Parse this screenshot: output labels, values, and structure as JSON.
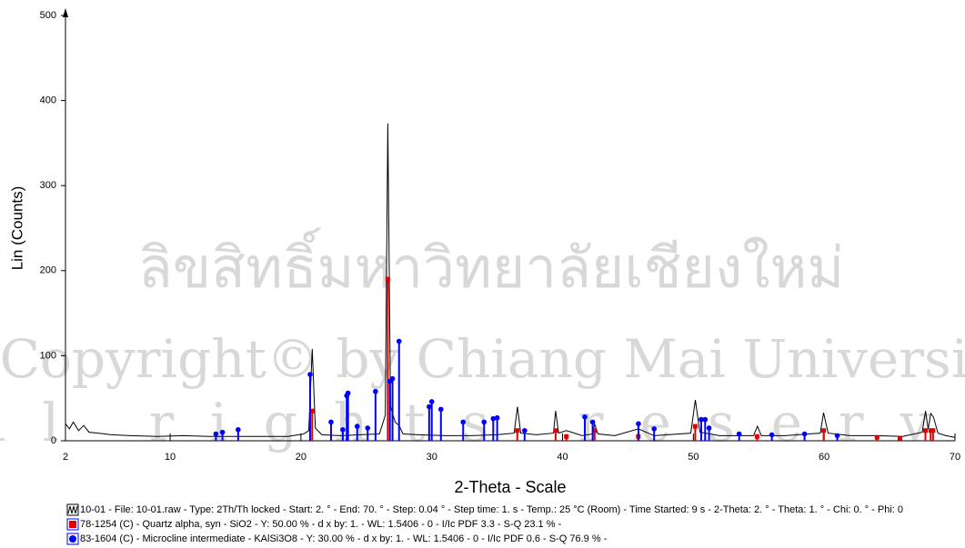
{
  "chart_data": {
    "type": "line",
    "x_label": "2-Theta - Scale",
    "y_label": "Lin (Counts)",
    "xlim": [
      2,
      70
    ],
    "xticks": [
      2,
      10,
      20,
      30,
      40,
      50,
      60,
      70
    ],
    "ylim": [
      0,
      500
    ],
    "yticks": [
      0,
      100,
      200,
      300,
      400,
      500
    ],
    "watermark": [
      "ลิขสิทธิ์มหาวิทยาลัยเชียงใหม่",
      "Copyright© by Chiang Mai University",
      "All rights reserved"
    ],
    "series": [
      {
        "name": "10-01 - File: 10-01.raw - Type: 2Th/Th locked - Start: 2. ° - End: 70. ° - Step: 0.04 ° - Step time: 1. s - Temp.: 25 °C (Room) - Time Started: 9 s - 2-Theta: 2. ° - Theta: 1. ° - Chi: 0. ° - Phi: 0",
        "color": "#000000",
        "marker": "none",
        "x": [
          2,
          2.3,
          2.6,
          3,
          3.4,
          3.8,
          4.5,
          5.5,
          7,
          9,
          11,
          13,
          15,
          17,
          19,
          20.2,
          20.6,
          20.86,
          21.1,
          21.6,
          23,
          24.5,
          26,
          26.45,
          26.64,
          26.85,
          27.2,
          27.5,
          27.8,
          29,
          31,
          33,
          35,
          36.3,
          36.55,
          36.8,
          38,
          39.3,
          39.47,
          39.7,
          40.3,
          41.5,
          42.3,
          42.45,
          42.7,
          44,
          45.8,
          47,
          49.8,
          50.15,
          50.5,
          52,
          54.6,
          54.9,
          55.2,
          57,
          59.7,
          59.95,
          60.3,
          62,
          64,
          66,
          67.5,
          67.75,
          67.95,
          68.15,
          68.35,
          68.7,
          69.3,
          70
        ],
        "values": [
          20,
          14,
          22,
          12,
          18,
          10,
          9,
          7,
          6,
          5,
          6,
          5,
          5,
          5,
          5,
          8,
          12,
          108,
          15,
          7,
          6,
          7,
          8,
          30,
          373,
          40,
          22,
          18,
          8,
          7,
          6,
          6,
          7,
          9,
          40,
          9,
          7,
          9,
          35,
          9,
          12,
          6,
          8,
          20,
          8,
          6,
          14,
          6,
          9,
          48,
          10,
          6,
          6,
          17,
          6,
          6,
          9,
          33,
          9,
          6,
          6,
          5,
          10,
          35,
          14,
          32,
          28,
          9,
          6,
          4
        ]
      },
      {
        "name": "78-1254 (C) - Quartz alpha, syn - SiO2 - Y: 50.00 % - d x by: 1. - WL: 1.5406 - 0 - I/Ic PDF 3.3 - S-Q 23.1 % -",
        "color": "#e00000",
        "marker": "square",
        "x": [
          20.86,
          26.64,
          36.54,
          39.47,
          40.29,
          42.45,
          45.79,
          50.14,
          54.87,
          59.96,
          64.04,
          65.79,
          67.74,
          68.14,
          68.32
        ],
        "values": [
          35,
          190,
          12,
          12,
          5,
          12,
          5,
          17,
          5,
          12,
          4,
          3,
          12,
          12,
          12
        ]
      },
      {
        "name": "83-1604 (C) - Microcline intermediate - KAlSi3O8 - Y: 30.00 % - d x by: 1. - WL: 1.5406 - 0 - I/Ic PDF 0.6 - S-Q 76.9 % -",
        "color": "#0000ff",
        "marker": "circle",
        "x": [
          13.5,
          14.0,
          15.2,
          20.7,
          22.3,
          23.2,
          23.5,
          23.6,
          24.3,
          25.1,
          25.7,
          26.8,
          27.0,
          27.5,
          29.8,
          30.0,
          30.7,
          32.4,
          34.0,
          34.7,
          35.0,
          37.1,
          41.7,
          42.3,
          45.8,
          47.0,
          50.6,
          50.9,
          51.2,
          53.5,
          56.0,
          58.5,
          61.0
        ],
        "values": [
          8,
          10,
          13,
          78,
          22,
          13,
          53,
          56,
          17,
          15,
          58,
          70,
          73,
          117,
          40,
          46,
          37,
          22,
          22,
          26,
          27,
          12,
          28,
          22,
          20,
          14,
          25,
          25,
          15,
          8,
          7,
          8,
          6
        ]
      }
    ]
  }
}
